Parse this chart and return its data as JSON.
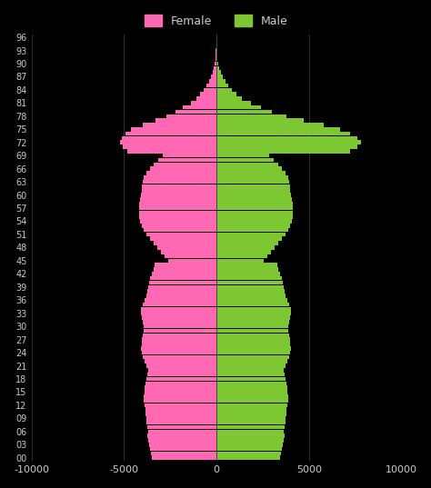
{
  "background_color": "#000000",
  "female_color": "#ff69b4",
  "male_color": "#7dc832",
  "text_color": "#cccccc",
  "grid_color": "#444444",
  "xlim": [
    -10000,
    10000
  ],
  "xticks": [
    -10000,
    -5000,
    0,
    5000,
    10000
  ],
  "ytick_labels": [
    "00",
    "03",
    "06",
    "09",
    "12",
    "15",
    "18",
    "21",
    "24",
    "27",
    "30",
    "33",
    "36",
    "39",
    "42",
    "45",
    "48",
    "51",
    "54",
    "57",
    "60",
    "63",
    "66",
    "69",
    "72",
    "75",
    "78",
    "81",
    "84",
    "87",
    "90",
    "93",
    "96"
  ],
  "legend_female": "Female",
  "legend_male": "Male",
  "ages": [
    0,
    1,
    2,
    3,
    4,
    5,
    6,
    7,
    8,
    9,
    10,
    11,
    12,
    13,
    14,
    15,
    16,
    17,
    18,
    19,
    20,
    21,
    22,
    23,
    24,
    25,
    26,
    27,
    28,
    29,
    30,
    31,
    32,
    33,
    34,
    35,
    36,
    37,
    38,
    39,
    40,
    41,
    42,
    43,
    44,
    45,
    46,
    47,
    48,
    49,
    50,
    51,
    52,
    53,
    54,
    55,
    56,
    57,
    58,
    59,
    60,
    61,
    62,
    63,
    64,
    65,
    66,
    67,
    68,
    69,
    70,
    71,
    72,
    73,
    74,
    75,
    76,
    77,
    78,
    79,
    80,
    81,
    82,
    83,
    84,
    85,
    86,
    87,
    88,
    89,
    90,
    91,
    92,
    93,
    94,
    95,
    96
  ],
  "female": [
    -3500,
    -3550,
    -3600,
    -3650,
    -3700,
    -3750,
    -3700,
    -3750,
    -3800,
    -3800,
    -3850,
    -3850,
    -3900,
    -3950,
    -3950,
    -3900,
    -3900,
    -3850,
    -3800,
    -3750,
    -3700,
    -3800,
    -3900,
    -4000,
    -4050,
    -4100,
    -4050,
    -4050,
    -4000,
    -3950,
    -3950,
    -4000,
    -4050,
    -4100,
    -4100,
    -4000,
    -3900,
    -3800,
    -3750,
    -3700,
    -3650,
    -3600,
    -3500,
    -3400,
    -3350,
    -2600,
    -2800,
    -3000,
    -3200,
    -3400,
    -3600,
    -3800,
    -3950,
    -4050,
    -4150,
    -4200,
    -4200,
    -4200,
    -4200,
    -4150,
    -4100,
    -4050,
    -4050,
    -4000,
    -3950,
    -3800,
    -3600,
    -3400,
    -3150,
    -2900,
    -4800,
    -5050,
    -5200,
    -5100,
    -4900,
    -4600,
    -4000,
    -3300,
    -2700,
    -2200,
    -1800,
    -1400,
    -1100,
    -900,
    -700,
    -530,
    -400,
    -300,
    -210,
    -150,
    -100,
    -65,
    -40,
    -25,
    -14,
    -7,
    -3
  ],
  "male": [
    3450,
    3500,
    3550,
    3600,
    3650,
    3700,
    3650,
    3700,
    3750,
    3750,
    3800,
    3800,
    3850,
    3900,
    3900,
    3850,
    3850,
    3800,
    3750,
    3700,
    3650,
    3750,
    3850,
    3950,
    4000,
    4050,
    4000,
    4000,
    3950,
    3900,
    3900,
    3950,
    4000,
    4050,
    4050,
    3950,
    3850,
    3750,
    3700,
    3650,
    3600,
    3550,
    3450,
    3350,
    3300,
    2550,
    2750,
    2950,
    3150,
    3350,
    3550,
    3750,
    3900,
    4000,
    4100,
    4150,
    4150,
    4150,
    4150,
    4100,
    4050,
    4000,
    4000,
    3950,
    3900,
    3750,
    3550,
    3350,
    3100,
    2850,
    7200,
    7600,
    7800,
    7600,
    7200,
    6700,
    5800,
    4700,
    3800,
    3000,
    2400,
    1850,
    1400,
    1100,
    850,
    630,
    470,
    340,
    230,
    160,
    105,
    65,
    38,
    22,
    12,
    5,
    2
  ]
}
